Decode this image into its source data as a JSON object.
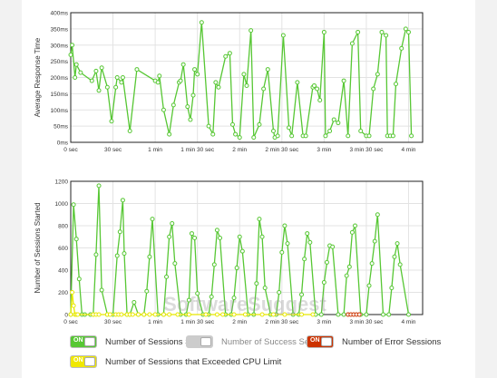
{
  "charts": [
    {
      "ylabel": "Average Response Time",
      "ylim": [
        0,
        400
      ],
      "yticks": [
        {
          "v": 0,
          "label": "0ms"
        },
        {
          "v": 50,
          "label": "50ms"
        },
        {
          "v": 100,
          "label": "100ms"
        },
        {
          "v": 150,
          "label": "150ms"
        },
        {
          "v": 200,
          "label": "200ms"
        },
        {
          "v": 250,
          "label": "250ms"
        },
        {
          "v": 300,
          "label": "300ms"
        },
        {
          "v": 350,
          "label": "350ms"
        },
        {
          "v": 400,
          "label": "400ms"
        }
      ]
    },
    {
      "ylabel": "Number of Sessions Started",
      "ylim": [
        0,
        1200
      ],
      "yticks": [
        {
          "v": 0,
          "label": "0"
        },
        {
          "v": 200,
          "label": "200"
        },
        {
          "v": 400,
          "label": "400"
        },
        {
          "v": 600,
          "label": "600"
        },
        {
          "v": 800,
          "label": "800"
        },
        {
          "v": 1000,
          "label": "1000"
        },
        {
          "v": 1200,
          "label": "1200"
        }
      ]
    }
  ],
  "xaxis": {
    "xlim": [
      0,
      250
    ],
    "ticks": [
      {
        "v": 0,
        "label": "0 sec"
      },
      {
        "v": 30,
        "label": "30 sec"
      },
      {
        "v": 60,
        "label": "1 min"
      },
      {
        "v": 90,
        "label": "1 min 30 sec"
      },
      {
        "v": 120,
        "label": "2 min"
      },
      {
        "v": 150,
        "label": "2 min 30 sec"
      },
      {
        "v": 180,
        "label": "3 min"
      },
      {
        "v": 210,
        "label": "3 min 30 sec"
      },
      {
        "v": 240,
        "label": "4 min"
      }
    ]
  },
  "chart_data": [
    {
      "type": "line",
      "ylabel": "Average Response Time",
      "xlim": [
        0,
        250
      ],
      "ylim": [
        0,
        400
      ],
      "grid": true,
      "series": [
        {
          "name": "Average Response Time",
          "color": "#57c734",
          "x": [
            0,
            1,
            3,
            4,
            7,
            15,
            18,
            20,
            22,
            26,
            29,
            32,
            33,
            36,
            37,
            42,
            47,
            60,
            62,
            63,
            66,
            70,
            73,
            77,
            78,
            80,
            83,
            85,
            87,
            88,
            90,
            93,
            98,
            101,
            103,
            105,
            110,
            113,
            115,
            117,
            120,
            123,
            125,
            128,
            130,
            134,
            137,
            140,
            144,
            145,
            147,
            151,
            155,
            157,
            161,
            165,
            167,
            172,
            173,
            175,
            177,
            180,
            181,
            184,
            187,
            190,
            194,
            197,
            200,
            204,
            206,
            210,
            212,
            215,
            218,
            221,
            224,
            225,
            227,
            229,
            231,
            235,
            238,
            240,
            242
          ],
          "y": [
            270,
            300,
            200,
            240,
            215,
            190,
            220,
            160,
            230,
            170,
            65,
            170,
            200,
            185,
            200,
            35,
            225,
            190,
            185,
            205,
            100,
            25,
            115,
            185,
            190,
            240,
            110,
            70,
            145,
            225,
            210,
            370,
            50,
            25,
            185,
            170,
            265,
            275,
            55,
            25,
            15,
            210,
            175,
            345,
            15,
            55,
            165,
            225,
            35,
            15,
            20,
            330,
            45,
            20,
            185,
            20,
            20,
            170,
            175,
            165,
            130,
            340,
            20,
            35,
            70,
            60,
            190,
            20,
            305,
            340,
            35,
            20,
            20,
            165,
            210,
            340,
            330,
            20,
            20,
            20,
            180,
            290,
            350,
            340,
            20
          ]
        }
      ]
    },
    {
      "type": "line",
      "ylabel": "Number of Sessions Started",
      "xlim": [
        0,
        250
      ],
      "ylim": [
        0,
        1200
      ],
      "grid": true,
      "series": [
        {
          "name": "Number of Sessions Started",
          "color": "#57c734",
          "x": [
            0,
            2,
            4,
            6,
            8,
            10,
            14,
            16,
            18,
            20,
            22,
            26,
            30,
            33,
            35,
            37,
            38,
            40,
            42,
            45,
            48,
            52,
            54,
            56,
            58,
            62,
            66,
            68,
            70,
            72,
            74,
            78,
            82,
            84,
            86,
            88,
            90,
            94,
            98,
            100,
            102,
            104,
            106,
            110,
            114,
            116,
            118,
            120,
            122,
            126,
            130,
            132,
            134,
            136,
            138,
            142,
            146,
            148,
            150,
            152,
            154,
            158,
            162,
            164,
            166,
            168,
            170,
            174,
            178,
            180,
            182,
            184,
            186,
            190,
            194,
            196,
            198,
            200,
            202,
            206,
            210,
            212,
            214,
            216,
            218,
            222,
            226,
            228,
            230,
            232,
            234,
            240
          ],
          "y": [
            0,
            990,
            680,
            320,
            0,
            0,
            0,
            0,
            540,
            1160,
            220,
            0,
            0,
            530,
            745,
            1030,
            550,
            0,
            0,
            110,
            0,
            0,
            210,
            520,
            860,
            0,
            0,
            340,
            700,
            820,
            460,
            0,
            0,
            130,
            730,
            690,
            190,
            0,
            0,
            160,
            450,
            760,
            690,
            0,
            0,
            150,
            420,
            700,
            570,
            0,
            0,
            280,
            860,
            700,
            240,
            0,
            0,
            200,
            560,
            800,
            640,
            0,
            0,
            180,
            500,
            730,
            650,
            0,
            0,
            290,
            470,
            620,
            610,
            0,
            0,
            350,
            430,
            740,
            800,
            0,
            0,
            260,
            460,
            660,
            900,
            0,
            0,
            240,
            520,
            640,
            450,
            0
          ]
        },
        {
          "name": "Number of Success Sessions",
          "color": "#aaaaaa",
          "x": [],
          "y": []
        },
        {
          "name": "Number of Error Sessions",
          "color": "#cc3300",
          "x": [
            197,
            199,
            201,
            203,
            205
          ],
          "y": [
            0,
            0,
            0,
            0,
            0
          ]
        },
        {
          "name": "Number of Sessions that Exceeded CPU Limit",
          "color": "#e8e800",
          "x": [
            0,
            1,
            2,
            3,
            4,
            5,
            16,
            18,
            20,
            26,
            28,
            32,
            34,
            36,
            40,
            42,
            44,
            48,
            52,
            56,
            60,
            66,
            70,
            76,
            84,
            96,
            104,
            108,
            116,
            124,
            136,
            144,
            152,
            164,
            172
          ],
          "y": [
            0,
            200,
            80,
            0,
            0,
            0,
            0,
            0,
            0,
            0,
            0,
            0,
            0,
            0,
            0,
            0,
            0,
            0,
            0,
            0,
            0,
            0,
            0,
            0,
            0,
            0,
            0,
            0,
            0,
            0,
            0,
            0,
            0,
            0,
            0
          ]
        }
      ]
    }
  ],
  "legend": [
    {
      "toggle": "ON",
      "label": "Number of Sessions Started",
      "toggle_color": "#57c734",
      "on": true
    },
    {
      "toggle": "",
      "label": "Number of Success Sessions",
      "toggle_color": "#cccccc",
      "on": false
    },
    {
      "toggle": "ON",
      "label": "Number of Error Sessions",
      "toggle_color": "#cc3300",
      "on": true
    },
    {
      "toggle": "ON",
      "label": "Number of Sessions that Exceeded CPU Limit",
      "toggle_color": "#f0e800",
      "on": true
    }
  ],
  "watermark": "SoftwareSuggest"
}
